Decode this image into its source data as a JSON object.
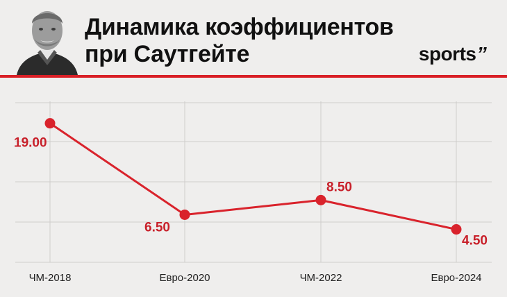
{
  "header": {
    "title_line1": "Динамика коэффициентов",
    "title_line2": "при Саутгейте",
    "brand": "sports",
    "brand_mark": "’’"
  },
  "colors": {
    "accent": "#d91f26",
    "line": "#d9232c",
    "label": "#c8202a",
    "background": "#efeeed"
  },
  "chart_data": {
    "type": "line",
    "title": "Динамика коэффициентов при Саутгейте",
    "categories": [
      "ЧМ-2018",
      "Евро-2020",
      "ЧМ-2022",
      "Евро-2024"
    ],
    "values": [
      19.0,
      6.5,
      8.5,
      4.5
    ],
    "data_labels": [
      "19.00",
      "6.50",
      "8.50",
      "4.50"
    ],
    "ylim": [
      0,
      22
    ],
    "grid": true,
    "legend": "none"
  }
}
